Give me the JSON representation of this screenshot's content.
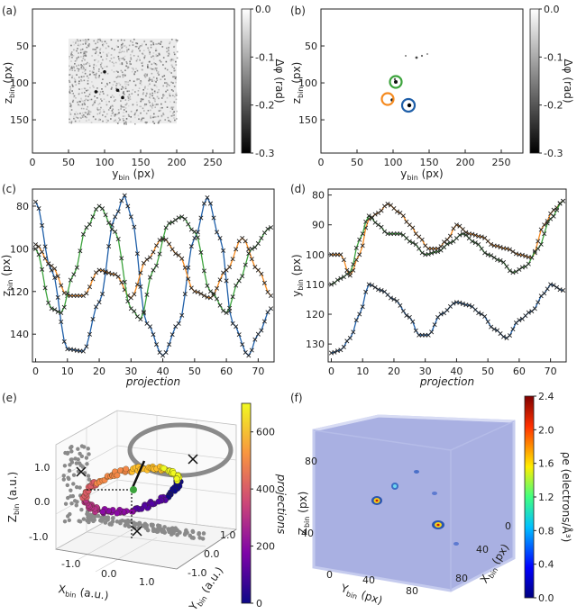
{
  "figure": {
    "panels": [
      "(a)",
      "(b)",
      "(c)",
      "(d)",
      "(e)",
      "(f)"
    ],
    "colors": {
      "blue": "#1f5fa8",
      "orange": "#f58a1f",
      "green": "#3ca33c",
      "fill_blue": "#8c95d8"
    }
  },
  "chart_data": [
    {
      "type": "heatmap",
      "panel": "(a)",
      "xlabel": "y_bin (px)",
      "ylabel": "z_bin (px)",
      "xticks": [
        "0",
        "50",
        "100",
        "150",
        "200",
        "250"
      ],
      "yticks": [
        "50",
        "100",
        "150"
      ],
      "xlim": [
        0,
        280
      ],
      "ylim": [
        195,
        0
      ],
      "noise_region": {
        "x": [
          50,
          200
        ],
        "y": [
          40,
          155
        ]
      },
      "colorbar": {
        "label": "Δφ (rad)",
        "ticks": [
          "0.0",
          "-0.1",
          "-0.2",
          "-0.3"
        ],
        "range": [
          -0.3,
          0.0
        ]
      }
    },
    {
      "type": "heatmap",
      "panel": "(b)",
      "xlabel": "y_bin (px)",
      "ylabel": "z_bin (px)",
      "xticks": [
        "0",
        "50",
        "100",
        "150",
        "200",
        "250"
      ],
      "yticks": [
        "50",
        "100",
        "150"
      ],
      "xlim": [
        0,
        280
      ],
      "ylim": [
        195,
        0
      ],
      "circled_spots": [
        {
          "color": "green",
          "y": 90,
          "z": 95
        },
        {
          "color": "orange",
          "y": 85,
          "z": 125
        },
        {
          "color": "blue",
          "y": 112,
          "z": 135
        }
      ],
      "colorbar": {
        "label": "Δφ (rad)",
        "ticks": [
          "0.0",
          "-0.1",
          "-0.2",
          "-0.3"
        ],
        "range": [
          -0.3,
          0.0
        ]
      }
    },
    {
      "type": "line",
      "panel": "(c)",
      "xlabel": "projection",
      "ylabel": "z_bin (px)",
      "xticks": [
        "0",
        "10",
        "20",
        "30",
        "40",
        "50",
        "60",
        "70"
      ],
      "yticks": [
        "80",
        "100",
        "120",
        "140"
      ],
      "xlim": [
        -1,
        75
      ],
      "ylim": [
        153,
        72
      ],
      "series": [
        {
          "name": "blue",
          "x": [
            0,
            5,
            10,
            15,
            20,
            25,
            28,
            30,
            35,
            40,
            45,
            50,
            54,
            58,
            62,
            67,
            70,
            74
          ],
          "values": [
            78,
            110,
            147,
            148,
            125,
            85,
            75,
            85,
            135,
            150,
            135,
            95,
            76,
            95,
            135,
            150,
            140,
            128
          ]
        },
        {
          "name": "orange",
          "x": [
            0,
            5,
            10,
            15,
            20,
            25,
            30,
            35,
            40,
            45,
            50,
            55,
            60,
            65,
            70,
            74
          ],
          "values": [
            98,
            108,
            122,
            122,
            110,
            112,
            123,
            105,
            95,
            103,
            120,
            123,
            110,
            95,
            110,
            122
          ]
        },
        {
          "name": "green",
          "x": [
            0,
            5,
            8,
            12,
            16,
            20,
            25,
            30,
            33,
            37,
            42,
            46,
            50,
            55,
            60,
            64,
            68,
            74
          ],
          "values": [
            100,
            128,
            130,
            112,
            90,
            80,
            92,
            128,
            133,
            110,
            88,
            85,
            92,
            120,
            130,
            115,
            100,
            90
          ]
        }
      ]
    },
    {
      "type": "line",
      "panel": "(d)",
      "xlabel": "projection",
      "ylabel": "y_bin (px)",
      "xticks": [
        "0",
        "10",
        "20",
        "30",
        "40",
        "50",
        "60",
        "70"
      ],
      "yticks": [
        "80",
        "90",
        "100",
        "110",
        "120",
        "130"
      ],
      "xlim": [
        -1,
        75
      ],
      "ylim": [
        136,
        78
      ],
      "series": [
        {
          "name": "blue",
          "x": [
            0,
            3,
            6,
            9,
            12,
            16,
            20,
            25,
            28,
            31,
            35,
            40,
            44,
            48,
            52,
            56,
            60,
            64,
            68,
            70,
            74
          ],
          "values": [
            133,
            132,
            128,
            120,
            110,
            112,
            115,
            121,
            127,
            127,
            120,
            116,
            117,
            120,
            125,
            128,
            122,
            119,
            113,
            110,
            112
          ]
        },
        {
          "name": "orange",
          "x": [
            0,
            3,
            6,
            9,
            12,
            15,
            18,
            22,
            25,
            28,
            31,
            34,
            37,
            40,
            44,
            48,
            52,
            56,
            60,
            64,
            68,
            71,
            74
          ],
          "values": [
            100,
            100,
            107,
            100,
            88,
            86,
            83,
            86,
            90,
            94,
            98,
            98,
            95,
            90,
            93,
            94,
            97,
            98,
            100,
            101,
            90,
            85,
            82
          ]
        },
        {
          "name": "green",
          "x": [
            0,
            3,
            6,
            9,
            12,
            15,
            18,
            22,
            26,
            30,
            34,
            38,
            42,
            46,
            50,
            54,
            58,
            62,
            66,
            70,
            74
          ],
          "values": [
            110,
            108,
            106,
            95,
            87,
            90,
            93,
            93,
            96,
            100,
            99,
            96,
            93,
            96,
            100,
            102,
            106,
            104,
            98,
            88,
            82
          ]
        }
      ]
    },
    {
      "type": "scatter",
      "panel": "(e)",
      "xlabel": "X_bin (a.u.)",
      "ylabel": "Y_bin (a.u.)",
      "zlabel": "Z_bin (a.u.)",
      "xticks": [
        "-1.0",
        "0.0",
        "1.0"
      ],
      "yticks": [
        "-1.0",
        "0.0",
        "1.0"
      ],
      "zticks": [
        "1.0",
        "0.0",
        "-1.0"
      ],
      "description_ring": "3D orbit of centroid colored by projection index with gray projections on walls",
      "colorbar": {
        "label": "projections",
        "ticks": [
          "600",
          "400",
          "200",
          "0"
        ],
        "range": [
          0,
          700
        ]
      }
    },
    {
      "type": "heatmap",
      "panel": "(f)",
      "xlabel": "X_bin (px)",
      "ylabel": "Y_bin (px)",
      "zlabel": "Z_bin (px)",
      "xticks": [
        "0",
        "40",
        "80"
      ],
      "yticks": [
        "0",
        "40",
        "80"
      ],
      "zticks": [
        "40",
        "80"
      ],
      "colorbar": {
        "label": "ρe (electrons/Å³)",
        "ticks": [
          "2.4",
          "2.0",
          "1.6",
          "1.2",
          "0.8",
          "0.4",
          "0.0"
        ],
        "range": [
          0.0,
          2.4
        ]
      }
    }
  ],
  "labels": {
    "a_ylab": "z",
    "a_ysub": "bin",
    "a_yunit": " (px)",
    "a_xlab": "y",
    "a_xsub": "bin",
    "a_xunit": " (px)",
    "cb_label": "Δφ (rad)",
    "proj": "projection",
    "c_ylab": "z",
    "c_ysub": "bin",
    "c_yunit": " (px)",
    "d_ylab": "y",
    "d_ysub": "bin",
    "d_yunit": " (px)",
    "e_z": "Z",
    "e_x": "X",
    "e_y": "Y",
    "sub": "bin",
    "au": " (a.u.)",
    "e_cb": "projections",
    "f_z": "Z",
    "f_x": "X",
    "f_y": "Y",
    "px": " (px)",
    "f_cb": "ρe (electrons/Å³)"
  }
}
